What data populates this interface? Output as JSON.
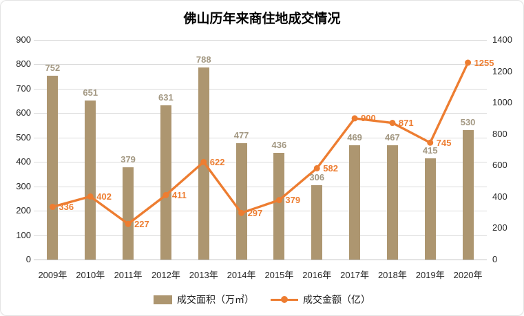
{
  "title": "佛山历年来商住地成交情况",
  "chart_data": {
    "type": "bar",
    "subtype": "combo-bar-line",
    "title": "佛山历年来商住地成交情况",
    "categories": [
      "2009年",
      "2010年",
      "2011年",
      "2012年",
      "2013年",
      "2014年",
      "2015年",
      "2016年",
      "2017年",
      "2018年",
      "2019年",
      "2020年"
    ],
    "series": [
      {
        "name": "成交面积（万㎡）",
        "type": "bar",
        "axis": "left",
        "color": "#ad9670",
        "label_color": "#a39882",
        "values": [
          752,
          651,
          379,
          631,
          788,
          477,
          436,
          306,
          469,
          467,
          415,
          530
        ]
      },
      {
        "name": "成交金额（亿）",
        "type": "line",
        "axis": "right",
        "color": "#ed7d31",
        "label_color": "#ed7d31",
        "values": [
          336,
          402,
          227,
          411,
          622,
          297,
          379,
          582,
          900,
          871,
          745,
          1255
        ]
      }
    ],
    "left_axis": {
      "min": 0,
      "max": 900,
      "step": 100,
      "ticks": [
        0,
        100,
        200,
        300,
        400,
        500,
        600,
        700,
        800,
        900
      ]
    },
    "right_axis": {
      "min": 0,
      "max": 1400,
      "step": 200,
      "ticks": [
        0,
        200,
        400,
        600,
        800,
        1000,
        1200,
        1400
      ]
    },
    "grid": true,
    "legend_position": "bottom",
    "colors": {
      "gridline": "#d9d9d9",
      "axis_line": "#bfbfbf",
      "tick_text": "#262626"
    }
  }
}
